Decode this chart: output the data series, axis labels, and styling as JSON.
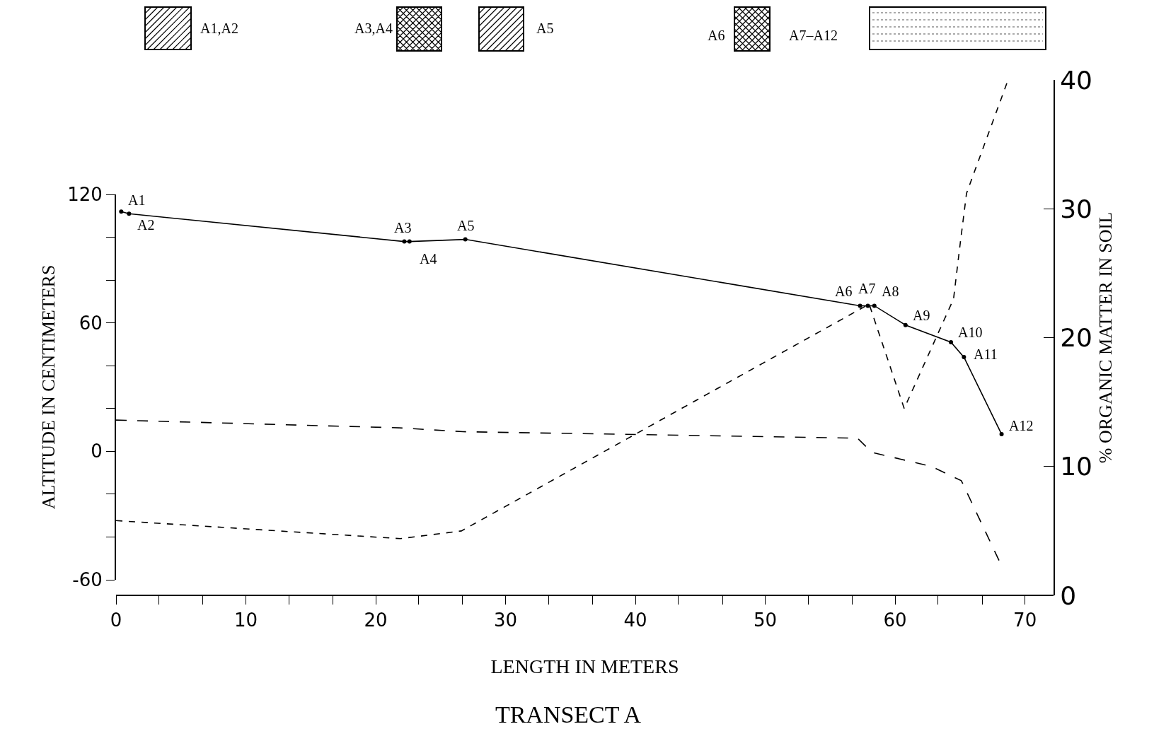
{
  "chart_data": {
    "type": "line",
    "title": "TRANSECT A",
    "xlabel": "LENGTH IN METERS",
    "ylabel": "ALTITUDE IN CENTIMETERS",
    "y2label": "% ORGANIC MATTER IN SOIL",
    "series": [
      {
        "color": "#000000",
        "marker": "circle",
        "line_style": "solid",
        "x": [
          0.4,
          1.0,
          22.2,
          22.6,
          26.9,
          57.3,
          57.9,
          58.4,
          60.8,
          64.3,
          65.3,
          68.2
        ],
        "values": [
          112,
          111,
          98,
          98,
          99,
          68,
          68,
          68,
          59,
          51,
          44,
          8
        ]
      },
      {
        "color": "#000000",
        "line_style": "dashed",
        "axis": "y2",
        "x": [
          0,
          21.9,
          26.6,
          58.0,
          60.7,
          64.5,
          65.0,
          65.5,
          68.7
        ],
        "values": [
          5.8,
          4.4,
          5.0,
          22.6,
          14.5,
          23.0,
          27.2,
          31.2,
          40.0
        ]
      },
      {
        "color": "#000000",
        "line_style": "dashed",
        "axis": "y2",
        "x": [
          0,
          21.8,
          26.7,
          57.1,
          58.2,
          62.8,
          65.1,
          68.1
        ],
        "values": [
          13.6,
          13.0,
          12.7,
          12.2,
          11.1,
          10.0,
          8.9,
          2.5
        ]
      }
    ],
    "annotations": [
      {
        "text": "A1",
        "x": 0.4,
        "y": 112
      },
      {
        "text": "A2",
        "x": 1.0,
        "y": 111
      },
      {
        "text": "A3",
        "x": 22.2,
        "y": 98
      },
      {
        "text": "A4",
        "x": 22.6,
        "y": 98
      },
      {
        "text": "A5",
        "x": 26.9,
        "y": 99
      },
      {
        "text": "A6",
        "x": 57.3,
        "y": 68
      },
      {
        "text": "A7",
        "x": 57.9,
        "y": 68
      },
      {
        "text": "A8",
        "x": 58.4,
        "y": 68
      },
      {
        "text": "A9",
        "x": 60.8,
        "y": 59
      },
      {
        "text": "A10",
        "x": 64.3,
        "y": 51
      },
      {
        "text": "A11",
        "x": 65.3,
        "y": 44
      },
      {
        "text": "A12",
        "x": 68.2,
        "y": 8
      },
      "A1,A2",
      "A3,A4",
      "A5",
      "A6",
      "A7–A12"
    ],
    "xlim": [
      0,
      72.2
    ],
    "xticks": [
      0,
      {
        "value": 3.3,
        "label": null
      },
      {
        "value": 6.7,
        "label": null
      },
      10,
      {
        "value": 13.3,
        "label": null
      },
      {
        "value": 16.7,
        "label": null
      },
      20,
      {
        "value": 23.3,
        "label": null
      },
      {
        "value": 26.7,
        "label": null
      },
      30,
      {
        "value": 33.3,
        "label": null
      },
      {
        "value": 36.7,
        "label": null
      },
      40,
      {
        "value": 43.3,
        "label": null
      },
      {
        "value": 46.7,
        "label": null
      },
      50,
      {
        "value": 53.3,
        "label": null
      },
      {
        "value": 56.7,
        "label": null
      },
      60,
      {
        "value": 63.3,
        "label": null
      },
      {
        "value": 66.7,
        "label": null
      },
      70
    ],
    "ylim": [
      -60,
      120
    ],
    "yticks": [
      -60,
      {
        "value": -40,
        "label": null
      },
      {
        "value": -20,
        "label": null
      },
      0,
      {
        "value": 20,
        "label": null
      },
      {
        "value": 40,
        "label": null
      },
      60,
      {
        "value": 80,
        "label": null
      },
      {
        "value": 100,
        "label": null
      },
      120
    ],
    "y2lim": [
      0,
      40
    ],
    "y2ticks": [
      0,
      10,
      20,
      30,
      40
    ],
    "grid": false
  }
}
